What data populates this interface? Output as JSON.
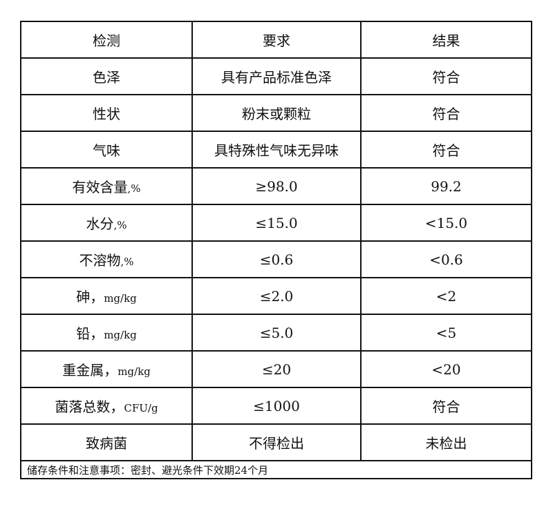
{
  "header": [
    "检测",
    "要求",
    "结果"
  ],
  "rows": [
    {
      "item": "色泽",
      "unit": "",
      "requirement": "具有产品标准色泽",
      "result": "符合"
    },
    {
      "item": "性状",
      "unit": "",
      "requirement": "粉末或颗粒",
      "result": "符合"
    },
    {
      "item": "气味",
      "unit": "",
      "requirement": "具特殊性气味无异味",
      "result": "符合"
    },
    {
      "item": "有效含量",
      "unit": ",%",
      "requirement": "≥98.0",
      "result": "99.2"
    },
    {
      "item": "水分",
      "unit": ",%",
      "requirement": "≤15.0",
      "result": "<15.0"
    },
    {
      "item": "不溶物",
      "unit": ",%",
      "requirement": "≤0.6",
      "result": "<0.6"
    },
    {
      "item": "砷，",
      "unit": "mg/kg",
      "requirement": "≤2.0",
      "result": "<2"
    },
    {
      "item": "铅，",
      "unit": "mg/kg",
      "requirement": "≤5.0",
      "result": "<5"
    },
    {
      "item": "重金属，",
      "unit": "mg/kg",
      "requirement": "≤20",
      "result": "<20"
    },
    {
      "item": "菌落总数，",
      "unit": "CFU/g",
      "requirement": "≤1000",
      "result": "符合"
    },
    {
      "item": "致病菌",
      "unit": "",
      "requirement": "不得检出",
      "result": "未检出"
    }
  ],
  "footer": "储存条件和注意事项：密封、避光条件下效期24个月"
}
